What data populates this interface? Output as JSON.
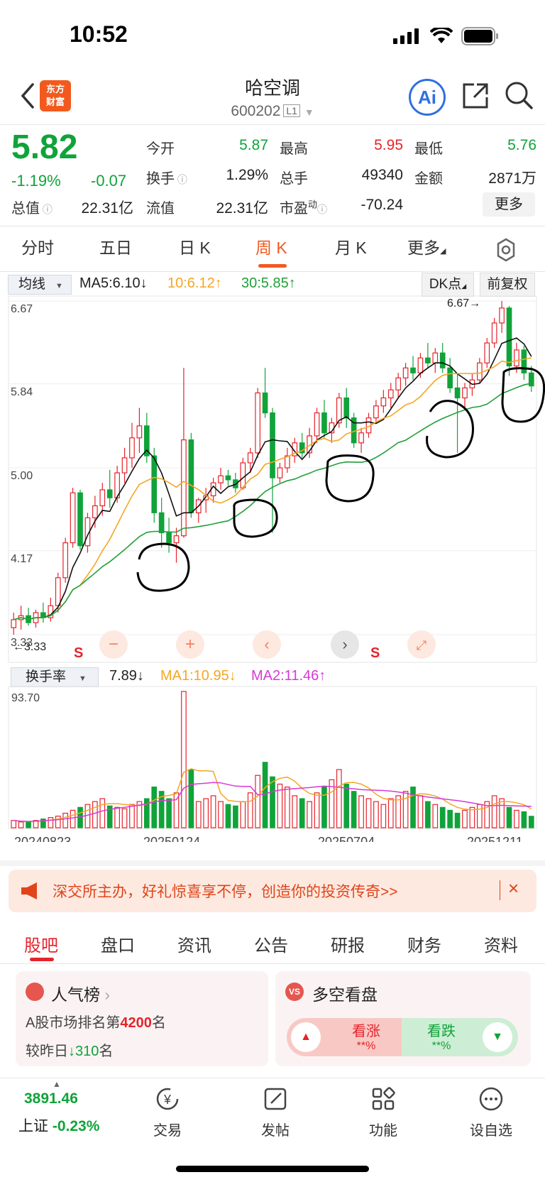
{
  "status_bar": {
    "time": "10:52"
  },
  "header": {
    "title": "哈空调",
    "code": "600202",
    "market_level": "L1",
    "logo_line1": "东方",
    "logo_line2": "财富",
    "ai_label": "Ai"
  },
  "quote": {
    "price": "5.82",
    "change_pct": "-1.19%",
    "change_abs": "-0.07",
    "open_label": "今开",
    "open": "5.87",
    "high_label": "最高",
    "high": "5.95",
    "low_label": "最低",
    "low": "5.76",
    "turnover_label": "换手",
    "turnover": "1.29%",
    "volume_label": "总手",
    "volume": "49340",
    "amount_label": "金额",
    "amount": "2871万",
    "total_mv_label": "总值",
    "total_mv": "22.31亿",
    "float_mv_label": "流值",
    "float_mv": "22.31亿",
    "pe_label": "市盈",
    "pe_sup": "动",
    "pe": "-70.24",
    "more_label": "更多"
  },
  "tabs": [
    "分时",
    "五日",
    "日 K",
    "周 K",
    "月 K",
    "更多"
  ],
  "active_tab": "周 K",
  "ma_bar": {
    "select": "均线",
    "ma5": "MA5:6.10",
    "ma10": "10:6.12",
    "ma30": "30:5.85",
    "dk": "DK点",
    "adjust": "前复权"
  },
  "colors": {
    "up": "#e5232b",
    "down": "#10a33a",
    "ma5": "#111111",
    "ma10": "#f5a623",
    "ma30": "#21a038",
    "accent": "#f05a22"
  },
  "chart_data": [
    {
      "type": "candlestick",
      "y_ticks": [
        "6.67",
        "5.84",
        "5.00",
        "4.17",
        "3.33"
      ],
      "ylim": [
        3.33,
        6.67
      ],
      "annotations": [
        "6.67",
        "3.33"
      ],
      "markers": [
        "S",
        "S"
      ],
      "ohlc": [
        [
          3.4,
          3.55,
          3.33,
          3.48
        ],
        [
          3.48,
          3.62,
          3.38,
          3.52
        ],
        [
          3.52,
          3.6,
          3.42,
          3.45
        ],
        [
          3.45,
          3.58,
          3.4,
          3.55
        ],
        [
          3.55,
          3.65,
          3.45,
          3.5
        ],
        [
          3.5,
          3.7,
          3.46,
          3.62
        ],
        [
          3.62,
          3.95,
          3.55,
          3.9
        ],
        [
          3.9,
          4.3,
          3.85,
          4.25
        ],
        [
          4.25,
          4.8,
          4.2,
          4.75
        ],
        [
          4.75,
          4.78,
          4.18,
          4.22
        ],
        [
          4.22,
          4.55,
          4.15,
          4.5
        ],
        [
          4.5,
          4.72,
          4.4,
          4.62
        ],
        [
          4.62,
          4.85,
          4.52,
          4.78
        ],
        [
          4.78,
          4.98,
          4.6,
          4.7
        ],
        [
          4.7,
          5.02,
          4.65,
          4.95
        ],
        [
          4.95,
          5.2,
          4.85,
          5.1
        ],
        [
          5.1,
          5.45,
          5.0,
          5.3
        ],
        [
          5.3,
          5.6,
          5.15,
          5.42
        ],
        [
          5.42,
          5.55,
          5.05,
          5.12
        ],
        [
          5.12,
          5.2,
          4.45,
          4.55
        ],
        [
          4.55,
          4.7,
          4.2,
          4.35
        ],
        [
          4.35,
          4.5,
          4.15,
          4.25
        ],
        [
          4.25,
          4.4,
          4.05,
          4.32
        ],
        [
          4.32,
          6.0,
          4.3,
          5.28
        ],
        [
          5.28,
          5.35,
          4.5,
          4.55
        ],
        [
          4.55,
          4.7,
          4.45,
          4.68
        ],
        [
          4.68,
          4.8,
          4.55,
          4.72
        ],
        [
          4.72,
          4.9,
          4.65,
          4.85
        ],
        [
          4.85,
          5.0,
          4.78,
          4.92
        ],
        [
          4.92,
          4.98,
          4.82,
          4.88
        ],
        [
          4.88,
          4.95,
          4.75,
          4.8
        ],
        [
          4.8,
          5.1,
          4.78,
          5.05
        ],
        [
          5.05,
          5.2,
          4.95,
          5.15
        ],
        [
          5.15,
          5.8,
          5.1,
          5.75
        ],
        [
          5.75,
          6.0,
          5.5,
          5.55
        ],
        [
          5.55,
          5.6,
          4.35,
          4.9
        ],
        [
          4.9,
          5.05,
          4.85,
          5.0
        ],
        [
          5.0,
          5.2,
          4.95,
          5.12
        ],
        [
          5.12,
          5.3,
          5.05,
          5.25
        ],
        [
          5.25,
          5.35,
          5.1,
          5.15
        ],
        [
          5.15,
          5.4,
          5.1,
          5.32
        ],
        [
          5.32,
          5.6,
          5.25,
          5.55
        ],
        [
          5.55,
          5.68,
          5.3,
          5.35
        ],
        [
          5.35,
          5.5,
          5.25,
          5.45
        ],
        [
          5.45,
          5.75,
          5.4,
          5.7
        ],
        [
          5.7,
          5.8,
          5.4,
          5.5
        ],
        [
          5.5,
          5.55,
          5.2,
          5.25
        ],
        [
          5.25,
          5.4,
          5.15,
          5.35
        ],
        [
          5.35,
          5.55,
          5.3,
          5.5
        ],
        [
          5.5,
          5.68,
          5.45,
          5.62
        ],
        [
          5.62,
          5.78,
          5.55,
          5.7
        ],
        [
          5.7,
          5.85,
          5.6,
          5.78
        ],
        [
          5.78,
          5.95,
          5.7,
          5.9
        ],
        [
          5.9,
          6.05,
          5.82,
          6.0
        ],
        [
          6.0,
          6.12,
          5.88,
          5.95
        ],
        [
          5.95,
          6.15,
          5.9,
          6.1
        ],
        [
          6.1,
          6.25,
          6.0,
          6.05
        ],
        [
          6.05,
          6.2,
          5.95,
          6.15
        ],
        [
          6.15,
          6.25,
          5.95,
          6.0
        ],
        [
          6.0,
          6.1,
          5.75,
          5.8
        ],
        [
          5.8,
          5.95,
          5.15,
          5.7
        ],
        [
          5.7,
          5.85,
          5.6,
          5.8
        ],
        [
          5.8,
          5.95,
          5.72,
          5.88
        ],
        [
          5.88,
          6.1,
          5.85,
          6.05
        ],
        [
          6.05,
          6.3,
          6.0,
          6.25
        ],
        [
          6.25,
          6.5,
          6.2,
          6.45
        ],
        [
          6.45,
          6.67,
          6.35,
          6.6
        ],
        [
          6.6,
          6.62,
          5.92,
          6.02
        ],
        [
          6.02,
          6.25,
          5.95,
          6.18
        ],
        [
          6.18,
          6.22,
          5.88,
          5.95
        ],
        [
          5.95,
          6.02,
          5.76,
          5.82
        ]
      ]
    },
    {
      "type": "bar",
      "title": "换手率",
      "y_ticks": [
        "93.70"
      ],
      "ylim": [
        0,
        93.7
      ],
      "x_tick_labels": [
        "20240823",
        "20250124",
        "20250704",
        "20251211"
      ],
      "values": [
        5,
        4,
        4,
        5,
        6,
        7,
        8,
        10,
        12,
        14,
        16,
        18,
        20,
        15,
        14,
        13,
        16,
        18,
        20,
        28,
        25,
        20,
        24,
        93.7,
        40,
        18,
        20,
        22,
        18,
        16,
        15,
        18,
        24,
        36,
        45,
        35,
        30,
        28,
        22,
        20,
        18,
        24,
        28,
        33,
        40,
        30,
        25,
        22,
        20,
        18,
        16,
        20,
        22,
        25,
        28,
        22,
        18,
        16,
        14,
        12,
        10,
        12,
        14,
        16,
        18,
        22,
        20,
        14,
        12,
        11,
        7.89
      ],
      "ma1": "MA1:10.95",
      "ma2": "MA2:11.46",
      "current": "7.89"
    }
  ],
  "vol_bar": {
    "select": "换手率",
    "value": "7.89",
    "ma1": "MA1:10.95",
    "ma2": "MA2:11.46"
  },
  "banner": {
    "text": "深交所主办，好礼惊喜享不停，创造你的投资传奇>>"
  },
  "sub_tabs": [
    "股吧",
    "盘口",
    "资讯",
    "公告",
    "研报",
    "财务",
    "资料"
  ],
  "active_sub_tab": "股吧",
  "popularity": {
    "title": "人气榜",
    "rank_prefix": "A股市场排名第",
    "rank": "4200",
    "rank_suffix": "名",
    "change_prefix": "较昨日",
    "change": "310",
    "change_suffix": "名"
  },
  "bull_bear": {
    "title": "多空看盘",
    "up_label": "看涨",
    "up_value": "**%",
    "down_label": "看跌",
    "down_value": "**%"
  },
  "bottom_nav": {
    "index_value": "3891.46",
    "index_name": "上证",
    "index_change": "-0.23%",
    "trade": "交易",
    "post": "发帖",
    "functions": "功能",
    "watchlist": "设自选"
  }
}
